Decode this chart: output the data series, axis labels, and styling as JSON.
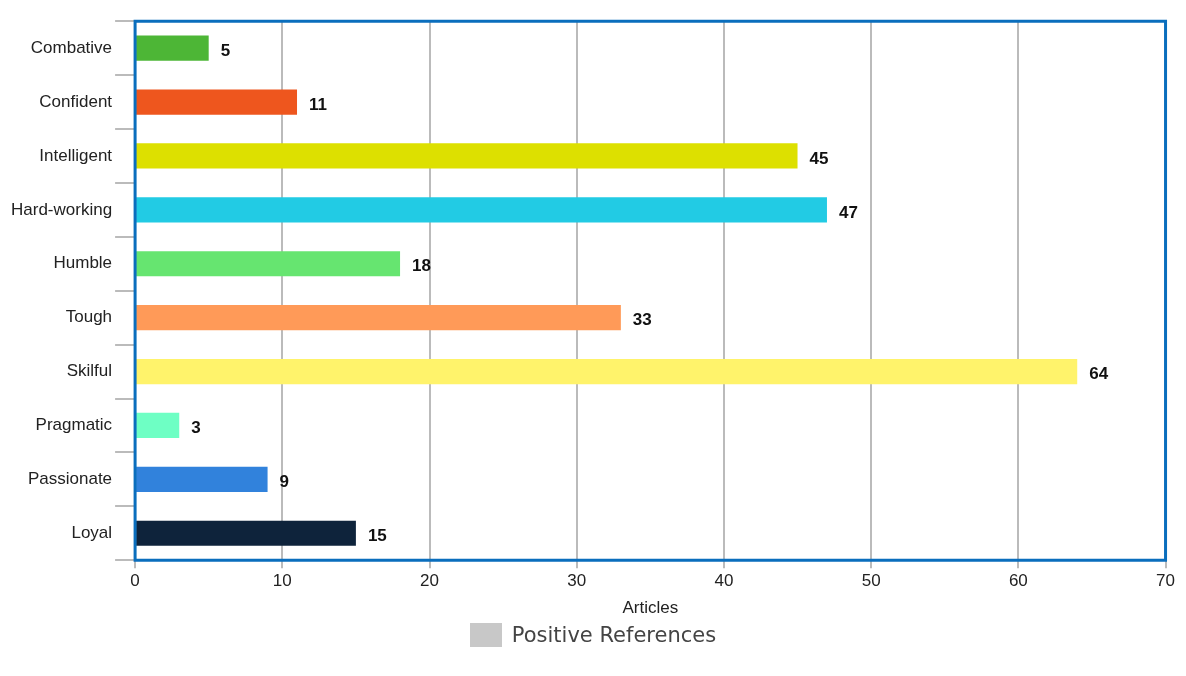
{
  "chart_data": {
    "type": "bar",
    "orientation": "horizontal",
    "xlabel": "Articles",
    "categories": [
      "Combative",
      "Confident",
      "Intelligent",
      "Hard-working",
      "Humble",
      "Tough",
      "Skilful",
      "Pragmatic",
      "Passionate",
      "Loyal"
    ],
    "series": [
      {
        "name": "Positive References",
        "values": [
          5,
          11,
          45,
          47,
          18,
          33,
          64,
          3,
          9,
          15
        ]
      }
    ],
    "colors": [
      "#4db636",
      "#ee561e",
      "#dde000",
      "#22cbe4",
      "#66e570",
      "#ff9a58",
      "#fff36b",
      "#6effc4",
      "#3182dc",
      "#0e233b"
    ],
    "xlim": [
      0,
      70
    ],
    "xticks": [
      0,
      10,
      20,
      30,
      40,
      50,
      60,
      70
    ],
    "grid": "x",
    "legend": "bottom",
    "data_labels": true
  }
}
